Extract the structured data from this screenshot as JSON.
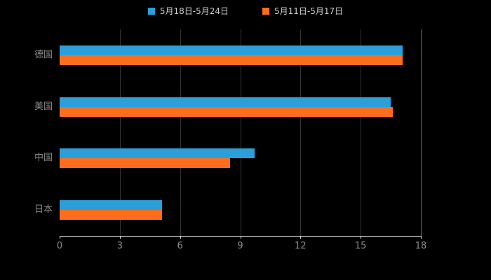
{
  "page": {
    "background": "#000000"
  },
  "chart_data": {
    "type": "bar",
    "orientation": "horizontal",
    "title": "",
    "categories": [
      "德国",
      "美国",
      "中国",
      "日本"
    ],
    "series": [
      {
        "name": "5月18日-5月24日",
        "color": "#2d9fd8",
        "values": [
          17.1,
          16.5,
          9.7,
          5.1
        ]
      },
      {
        "name": "5月11日-5月17日",
        "color": "#fc6e1e",
        "values": [
          17.1,
          16.6,
          8.5,
          5.1
        ]
      }
    ],
    "xlim": [
      0,
      18
    ],
    "xticks": [
      0,
      3,
      6,
      9,
      12,
      15,
      18
    ],
    "grid": true,
    "legend_position": "top",
    "axis_color": "#d6d6d6",
    "gridline_color": "#333333",
    "label_color": "#8c8c8c",
    "legend_text_color": "#cfcfcf"
  }
}
